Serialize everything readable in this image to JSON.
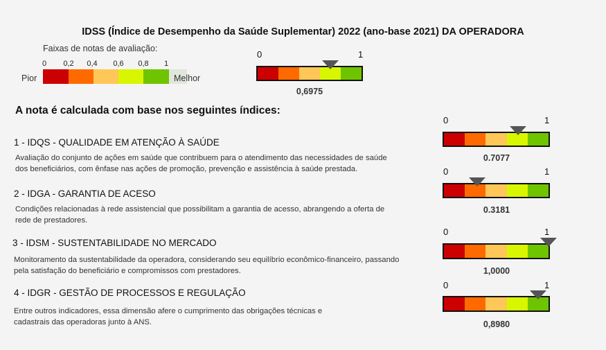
{
  "title": "IDSS (Índice de Desempenho da Saúde Suplementar) 2022 (ano-base 2021) DA OPERADORA",
  "legend": {
    "caption": "Faixas de notas de avaliação:",
    "ticks": [
      "0",
      "0,2",
      "0,4",
      "0,6",
      "0,8",
      "1"
    ],
    "worst_label": "Pior",
    "best_label": "Melhor"
  },
  "colors": [
    "#cc0000",
    "#ff6a00",
    "#ffc658",
    "#d8f600",
    "#6fc400"
  ],
  "overall": {
    "min_label": "0",
    "max_label": "1",
    "value": 0.6975,
    "value_label": "0,6975"
  },
  "section_heading": "A nota é calculada com base nos seguintes índices:",
  "indicators": [
    {
      "title": "1 - IDQS - QUALIDADE EM ATENÇÃO À SAÚDE",
      "desc_lines": [
        "Avaliação do conjunto de ações em saúde que contribuem para o atendimento das necessidades de saúde",
        "dos beneficiários, com ênfase nas ações de promoção, prevenção e assistência à saúde prestada."
      ],
      "min_label": "0",
      "max_label": "1",
      "value": 0.7077,
      "value_label": "0.7077"
    },
    {
      "title": "2 - IDGA - GARANTIA DE ACESO",
      "desc_lines": [
        "Condições relacionadas à rede assistencial que possibilitam a garantia de acesso, abrangendo a oferta de",
        "rede de prestadores."
      ],
      "min_label": "0",
      "max_label": "1",
      "value": 0.3181,
      "value_label": "0.3181"
    },
    {
      "title": "3 - IDSM - SUSTENTABILIDADE NO MERCADO",
      "desc_lines": [
        "Monitoramento da sustentabilidade da operadora, considerando seu equilíbrio econômico-financeiro, passando",
        "pela satisfação do beneficiário e compromissos com prestadores."
      ],
      "min_label": "0",
      "max_label": "1",
      "value": 1.0,
      "value_label": "1,0000"
    },
    {
      "title": "4 - IDGR - GESTÃO DE PROCESSOS E REGULAÇÃO",
      "desc_lines": [
        "Entre outros indicadores, essa dimensão afere o cumprimento das obrigações técnicas e",
        "cadastrais das operadoras junto à ANS."
      ],
      "min_label": "0",
      "max_label": "1",
      "value": 0.898,
      "value_label": "0,8980"
    }
  ]
}
